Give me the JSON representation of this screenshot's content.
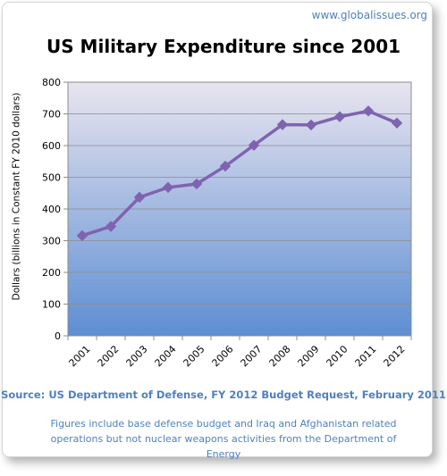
{
  "site": "www.globalissues.org",
  "source": "Source: US Department of Defense, FY 2012 Budget Request, February 2011",
  "note": "Figures include base defense budget and Iraq and Afghanistan related operations but not nuclear weapons activities from the Department of Energy",
  "colors": {
    "line": "#7f63b0",
    "accent_text": "#4f81bd",
    "plot_top": "#e8e4ef",
    "plot_bottom": "#5d8ed3"
  },
  "chart_data": {
    "type": "line",
    "title": "US Military Expenditure since 2001",
    "xlabel": "",
    "ylabel": "Dollars (billions in Constant FY 2010 dollars)",
    "categories": [
      "2001",
      "2002",
      "2003",
      "2004",
      "2005",
      "2006",
      "2007",
      "2008",
      "2009",
      "2010",
      "2011",
      "2012"
    ],
    "series": [
      {
        "values": [
          316,
          345,
          437,
          468,
          479,
          535,
          601,
          666,
          665,
          691,
          709,
          671
        ]
      }
    ],
    "ylim": [
      0,
      800
    ],
    "yticks": [
      0,
      100,
      200,
      300,
      400,
      500,
      600,
      700,
      800
    ],
    "grid": true,
    "legend": "none",
    "marker": "diamond"
  }
}
